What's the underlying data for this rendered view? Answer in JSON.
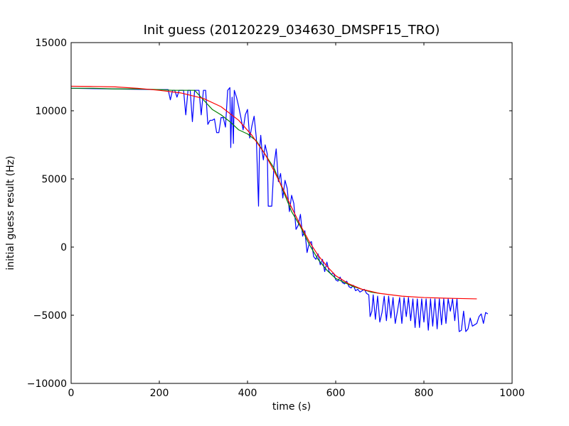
{
  "chart_data": {
    "type": "line",
    "title": "Init guess (20120229_034630_DMSPF15_TRO)",
    "xlabel": "time (s)",
    "ylabel": "initial guess result (Hz)",
    "xlim": [
      0,
      1000
    ],
    "ylim": [
      -10000,
      15000
    ],
    "xticks": [
      0,
      200,
      400,
      600,
      800,
      1000
    ],
    "yticks": [
      -10000,
      -5000,
      0,
      5000,
      10000,
      15000
    ],
    "xtick_labels": [
      "0",
      "200",
      "400",
      "600",
      "800",
      "1000"
    ],
    "ytick_labels": [
      "−10000",
      "−5000",
      "0",
      "5000",
      "10000",
      "15000"
    ],
    "grid": false,
    "series": [
      {
        "color": "#0000ff",
        "x": [
          0,
          200,
          220,
          225,
          230,
          235,
          240,
          245,
          250,
          255,
          260,
          265,
          270,
          275,
          280,
          285,
          290,
          295,
          300,
          305,
          310,
          315,
          320,
          325,
          330,
          335,
          340,
          345,
          350,
          355,
          360,
          362,
          365,
          368,
          370,
          375,
          380,
          385,
          390,
          395,
          400,
          405,
          410,
          415,
          420,
          425,
          427,
          430,
          433,
          436,
          440,
          445,
          447,
          450,
          455,
          460,
          465,
          470,
          475,
          480,
          485,
          490,
          495,
          500,
          505,
          510,
          515,
          520,
          525,
          530,
          535,
          540,
          545,
          550,
          555,
          560,
          565,
          570,
          575,
          580,
          585,
          590,
          595,
          600,
          605,
          610,
          615,
          620,
          625,
          630,
          635,
          640,
          645,
          650,
          655,
          660,
          665,
          670,
          675,
          678,
          682,
          685,
          690,
          695,
          700,
          705,
          710,
          715,
          720,
          725,
          730,
          735,
          740,
          745,
          750,
          755,
          760,
          765,
          770,
          775,
          780,
          785,
          790,
          795,
          800,
          805,
          810,
          815,
          820,
          825,
          830,
          835,
          840,
          845,
          850,
          855,
          860,
          865,
          870,
          875,
          880,
          885,
          890,
          895,
          900,
          905,
          910,
          915,
          920,
          925,
          930,
          935,
          940,
          945
        ],
        "y": [
          11650,
          11550,
          11550,
          10800,
          11500,
          11500,
          11000,
          11500,
          11500,
          11500,
          9700,
          11500,
          11500,
          9200,
          11500,
          11500,
          11500,
          9700,
          11500,
          11500,
          9000,
          9300,
          9300,
          9400,
          8400,
          8400,
          9500,
          9500,
          8800,
          11500,
          11700,
          7300,
          11000,
          7600,
          11500,
          11000,
          10300,
          9500,
          8600,
          9700,
          10100,
          8000,
          8900,
          9600,
          8000,
          3000,
          7000,
          8200,
          7000,
          6400,
          7500,
          6800,
          3000,
          3000,
          3000,
          6000,
          7200,
          4800,
          5400,
          3600,
          4900,
          4300,
          2600,
          3800,
          3200,
          1300,
          1600,
          2400,
          800,
          1200,
          -400,
          300,
          400,
          -700,
          -900,
          -500,
          -1300,
          -900,
          -1800,
          -1100,
          -1800,
          -2000,
          -1900,
          -2400,
          -2500,
          -2200,
          -2600,
          -2700,
          -2500,
          -2900,
          -3000,
          -2800,
          -3200,
          -3100,
          -3300,
          -3200,
          -3100,
          -3400,
          -3500,
          -5100,
          -4700,
          -3500,
          -5300,
          -3600,
          -5500,
          -4800,
          -3600,
          -5400,
          -3600,
          -5200,
          -3700,
          -5600,
          -4700,
          -3700,
          -5600,
          -3700,
          -5100,
          -3700,
          -5400,
          -3800,
          -5900,
          -3800,
          -5900,
          -3800,
          -5500,
          -3800,
          -6100,
          -3800,
          -5800,
          -3800,
          -6000,
          -3800,
          -5700,
          -3800,
          -5600,
          -3800,
          -4700,
          -3800,
          -5400,
          -3800,
          -6200,
          -6100,
          -4700,
          -6200,
          -6000,
          -5200,
          -5800,
          -5700,
          -5600,
          -5100,
          -4900,
          -5600,
          -4800,
          -4900
        ]
      },
      {
        "color": "#008000",
        "x": [
          0,
          50,
          100,
          150,
          200,
          230,
          260,
          280,
          300,
          320,
          340,
          360,
          380,
          400,
          420,
          440,
          460,
          480,
          500,
          520,
          540,
          560,
          580,
          600,
          620,
          640,
          660,
          680,
          700
        ],
        "y": [
          11650,
          11650,
          11600,
          11600,
          11550,
          11500,
          11500,
          11500,
          10800,
          10100,
          9700,
          9200,
          8600,
          8300,
          7800,
          6800,
          5800,
          4200,
          2600,
          1500,
          200,
          -900,
          -1700,
          -2300,
          -2600,
          -2900,
          -3100,
          -3300,
          -3400
        ]
      },
      {
        "color": "#ff0000",
        "x": [
          0,
          50,
          100,
          150,
          200,
          250,
          300,
          340,
          380,
          410,
          440,
          460,
          480,
          500,
          520,
          540,
          560,
          580,
          600,
          630,
          660,
          700,
          750,
          800,
          850,
          920
        ],
        "y": [
          11800,
          11780,
          11750,
          11650,
          11500,
          11300,
          10900,
          10300,
          9300,
          8200,
          6800,
          5600,
          4300,
          2900,
          1600,
          400,
          -600,
          -1400,
          -2100,
          -2700,
          -3100,
          -3400,
          -3600,
          -3700,
          -3750,
          -3800
        ]
      }
    ]
  }
}
